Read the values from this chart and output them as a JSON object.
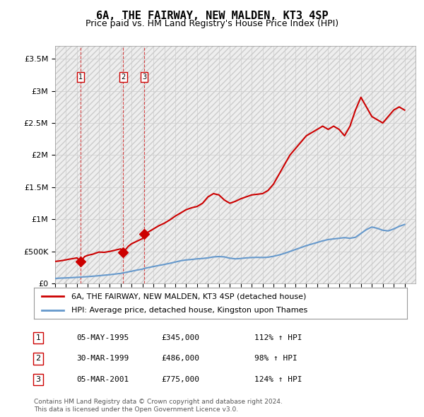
{
  "title": "6A, THE FAIRWAY, NEW MALDEN, KT3 4SP",
  "subtitle": "Price paid vs. HM Land Registry's House Price Index (HPI)",
  "legend_line1": "6A, THE FAIRWAY, NEW MALDEN, KT3 4SP (detached house)",
  "legend_line2": "HPI: Average price, detached house, Kingston upon Thames",
  "footer1": "Contains HM Land Registry data © Crown copyright and database right 2024.",
  "footer2": "This data is licensed under the Open Government Licence v3.0.",
  "transactions": [
    {
      "num": 1,
      "date": "05-MAY-1995",
      "price": 345000,
      "year": 1995.35,
      "pct": "112%",
      "dir": "↑"
    },
    {
      "num": 2,
      "date": "30-MAR-1999",
      "price": 486000,
      "year": 1999.24,
      "pct": "98%",
      "dir": "↑"
    },
    {
      "num": 3,
      "date": "05-MAR-2001",
      "price": 775000,
      "year": 2001.18,
      "pct": "124%",
      "dir": "↑"
    }
  ],
  "hpi_color": "#6699cc",
  "price_color": "#cc0000",
  "hatch_color": "#bbbbbb",
  "background_color": "#ffffff",
  "ylim": [
    0,
    3700000
  ],
  "xlim_start": 1993,
  "xlim_end": 2026,
  "yticks": [
    0,
    500000,
    1000000,
    1500000,
    2000000,
    2500000,
    3000000,
    3500000
  ],
  "ytick_labels": [
    "£0",
    "£500K",
    "£1M",
    "£1.5M",
    "£2M",
    "£2.5M",
    "£3M",
    "£3.5M"
  ],
  "xticks": [
    1993,
    1994,
    1995,
    1996,
    1997,
    1998,
    1999,
    2000,
    2001,
    2002,
    2003,
    2004,
    2005,
    2006,
    2007,
    2008,
    2009,
    2010,
    2011,
    2012,
    2013,
    2014,
    2015,
    2016,
    2017,
    2018,
    2019,
    2020,
    2021,
    2022,
    2023,
    2024,
    2025
  ],
  "hpi_data_x": [
    1993,
    1993.5,
    1994,
    1994.5,
    1995,
    1995.35,
    1995.5,
    1996,
    1996.5,
    1997,
    1997.5,
    1998,
    1998.5,
    1999,
    1999.24,
    1999.5,
    2000,
    2000.5,
    2001,
    2001.18,
    2001.5,
    2002,
    2002.5,
    2003,
    2003.5,
    2004,
    2004.5,
    2005,
    2005.5,
    2006,
    2006.5,
    2007,
    2007.5,
    2008,
    2008.5,
    2009,
    2009.5,
    2010,
    2010.5,
    2011,
    2011.5,
    2012,
    2012.5,
    2013,
    2013.5,
    2014,
    2014.5,
    2015,
    2015.5,
    2016,
    2016.5,
    2017,
    2017.5,
    2018,
    2018.5,
    2019,
    2019.5,
    2020,
    2020.5,
    2021,
    2021.5,
    2022,
    2022.5,
    2023,
    2023.5,
    2024,
    2024.5,
    2025
  ],
  "hpi_data_y": [
    80000,
    85000,
    88000,
    92000,
    97000,
    100000,
    103000,
    108000,
    115000,
    122000,
    130000,
    138000,
    148000,
    158000,
    165000,
    175000,
    192000,
    210000,
    225000,
    235000,
    248000,
    265000,
    282000,
    298000,
    315000,
    335000,
    355000,
    368000,
    375000,
    385000,
    390000,
    400000,
    415000,
    420000,
    415000,
    395000,
    385000,
    390000,
    400000,
    405000,
    408000,
    405000,
    410000,
    425000,
    445000,
    470000,
    500000,
    530000,
    560000,
    590000,
    615000,
    640000,
    665000,
    685000,
    695000,
    705000,
    715000,
    705000,
    720000,
    780000,
    840000,
    880000,
    860000,
    830000,
    820000,
    850000,
    890000,
    920000
  ],
  "price_data_x": [
    1993,
    1993.3,
    1993.7,
    1994,
    1994.3,
    1994.7,
    1995,
    1995.35,
    1995.7,
    1996,
    1996.5,
    1997,
    1997.5,
    1998,
    1998.5,
    1999,
    1999.24,
    1999.7,
    2000,
    2000.5,
    2001,
    2001.18,
    2001.5,
    2002,
    2002.5,
    2003,
    2003.5,
    2004,
    2004.5,
    2005,
    2005.5,
    2006,
    2006.5,
    2007,
    2007.5,
    2008,
    2008.5,
    2009,
    2009.5,
    2010,
    2010.5,
    2011,
    2011.5,
    2012,
    2012.5,
    2013,
    2013.5,
    2014,
    2014.5,
    2015,
    2015.5,
    2016,
    2016.5,
    2017,
    2017.5,
    2018,
    2018.5,
    2019,
    2019.5,
    2020,
    2020.5,
    2021,
    2021.5,
    2022,
    2022.5,
    2023,
    2023.5,
    2024,
    2024.5,
    2025
  ],
  "price_data_y": [
    345000,
    350000,
    360000,
    370000,
    380000,
    390000,
    400000,
    345000,
    420000,
    440000,
    460000,
    490000,
    486000,
    500000,
    520000,
    540000,
    486000,
    580000,
    620000,
    660000,
    700000,
    775000,
    800000,
    850000,
    900000,
    940000,
    990000,
    1050000,
    1100000,
    1150000,
    1180000,
    1200000,
    1250000,
    1350000,
    1400000,
    1380000,
    1300000,
    1250000,
    1280000,
    1320000,
    1350000,
    1380000,
    1390000,
    1400000,
    1450000,
    1550000,
    1700000,
    1850000,
    2000000,
    2100000,
    2200000,
    2300000,
    2350000,
    2400000,
    2450000,
    2400000,
    2450000,
    2400000,
    2300000,
    2450000,
    2700000,
    2900000,
    2750000,
    2600000,
    2550000,
    2500000,
    2600000,
    2700000,
    2750000,
    2700000
  ]
}
